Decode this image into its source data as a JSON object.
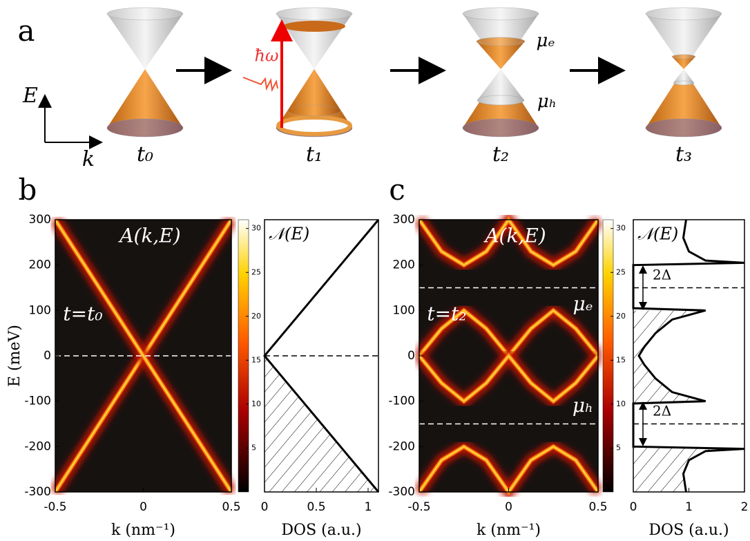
{
  "panel_labels": [
    "a",
    "b",
    "c"
  ],
  "diagram": {
    "axis_labels": [
      "E",
      "k"
    ],
    "times": [
      "t₀",
      "t₁",
      "t₂",
      "t₃"
    ],
    "photon": "ħω",
    "mu_e": "μₑ",
    "mu_h": "μₕ"
  },
  "chart_data": [
    {
      "type": "heatmap",
      "title": "A(k,E)",
      "annotation": "t=t₀",
      "xlabel": "k (nm⁻¹)",
      "ylabel": "E (meV)",
      "x": [
        -0.5,
        0,
        0.5
      ],
      "series": [
        {
          "color": "#ffd23a",
          "values": [
            -300,
            0,
            300
          ]
        },
        {
          "color": "#ffd23a",
          "values": [
            300,
            0,
            -300
          ]
        }
      ],
      "xlim": [
        -0.5,
        0.5
      ],
      "xticks": [
        -0.5,
        0,
        0.5
      ],
      "ylim": [
        -300,
        300
      ],
      "yticks": [
        -300,
        -200,
        -100,
        0,
        100,
        200,
        300
      ],
      "hlines": [
        0
      ],
      "colorbar": {
        "lim": [
          0,
          31
        ],
        "ticks": [
          5,
          10,
          15,
          20,
          25,
          30
        ]
      }
    },
    {
      "type": "dos",
      "title": "𝒩(E)",
      "xlabel": "DOS (a.u.)",
      "y": [
        -300,
        0,
        300
      ],
      "series": [
        {
          "color": "#000000",
          "values": [
            1.1,
            0,
            1.1
          ]
        }
      ],
      "xlim": [
        0,
        1.1
      ],
      "xticks": [
        0,
        0.5,
        1
      ],
      "ylim": [
        -300,
        300
      ],
      "hlines": [
        0
      ],
      "filled_below": 0
    },
    {
      "type": "heatmap",
      "title": "A(k,E)",
      "annotation": "t=t₂",
      "xlabel": "k (nm⁻¹)",
      "labels": [
        "μₑ",
        "μₕ"
      ],
      "x": [
        -0.5,
        -0.375,
        -0.25,
        -0.125,
        0,
        0.125,
        0.25,
        0.375,
        0.5
      ],
      "series": [
        {
          "color": "#ffd23a",
          "values": [
            300,
            230,
            200,
            230,
            300,
            230,
            200,
            230,
            300
          ]
        },
        {
          "color": "#ffd23a",
          "values": [
            0,
            60,
            100,
            60,
            0,
            60,
            100,
            60,
            0
          ]
        },
        {
          "color": "#ffd23a",
          "values": [
            0,
            -60,
            -100,
            -60,
            0,
            -60,
            -100,
            -60,
            0
          ]
        },
        {
          "color": "#ffd23a",
          "values": [
            -300,
            -230,
            -200,
            -230,
            -300,
            -230,
            -200,
            -230,
            -300
          ]
        }
      ],
      "xlim": [
        -0.5,
        0.5
      ],
      "xticks": [
        -0.5,
        0,
        0.5
      ],
      "ylim": [
        -300,
        300
      ],
      "yticks": [
        -300,
        -200,
        -100,
        0,
        100,
        200,
        300
      ],
      "hlines": [
        150,
        -150
      ],
      "colorbar": {
        "lim": [
          0,
          31
        ],
        "ticks": [
          5,
          10,
          15,
          20,
          25,
          30
        ]
      }
    },
    {
      "type": "dos",
      "title": "𝒩(E)",
      "xlabel": "DOS (a.u.)",
      "annotations": [
        "2Δ",
        "2Δ"
      ],
      "y": [
        300,
        260,
        230,
        210,
        205,
        200,
        105,
        100,
        80,
        50,
        20,
        0,
        -20,
        -50,
        -80,
        -100,
        -105,
        -200,
        -205,
        -210,
        -230,
        -260,
        -300
      ],
      "series": [
        {
          "color": "#000000",
          "values": [
            0.95,
            0.9,
            1.0,
            1.3,
            2.0,
            0,
            0,
            1.3,
            0.7,
            0.4,
            0.2,
            0.1,
            0.2,
            0.4,
            0.7,
            1.3,
            0,
            0,
            2.0,
            1.3,
            1.0,
            0.9,
            0.95
          ]
        }
      ],
      "xlim": [
        0,
        2
      ],
      "xticks": [
        0,
        1,
        2
      ],
      "ylim": [
        -300,
        300
      ],
      "hlines": [
        150,
        -150
      ],
      "filled_below": 100
    }
  ]
}
